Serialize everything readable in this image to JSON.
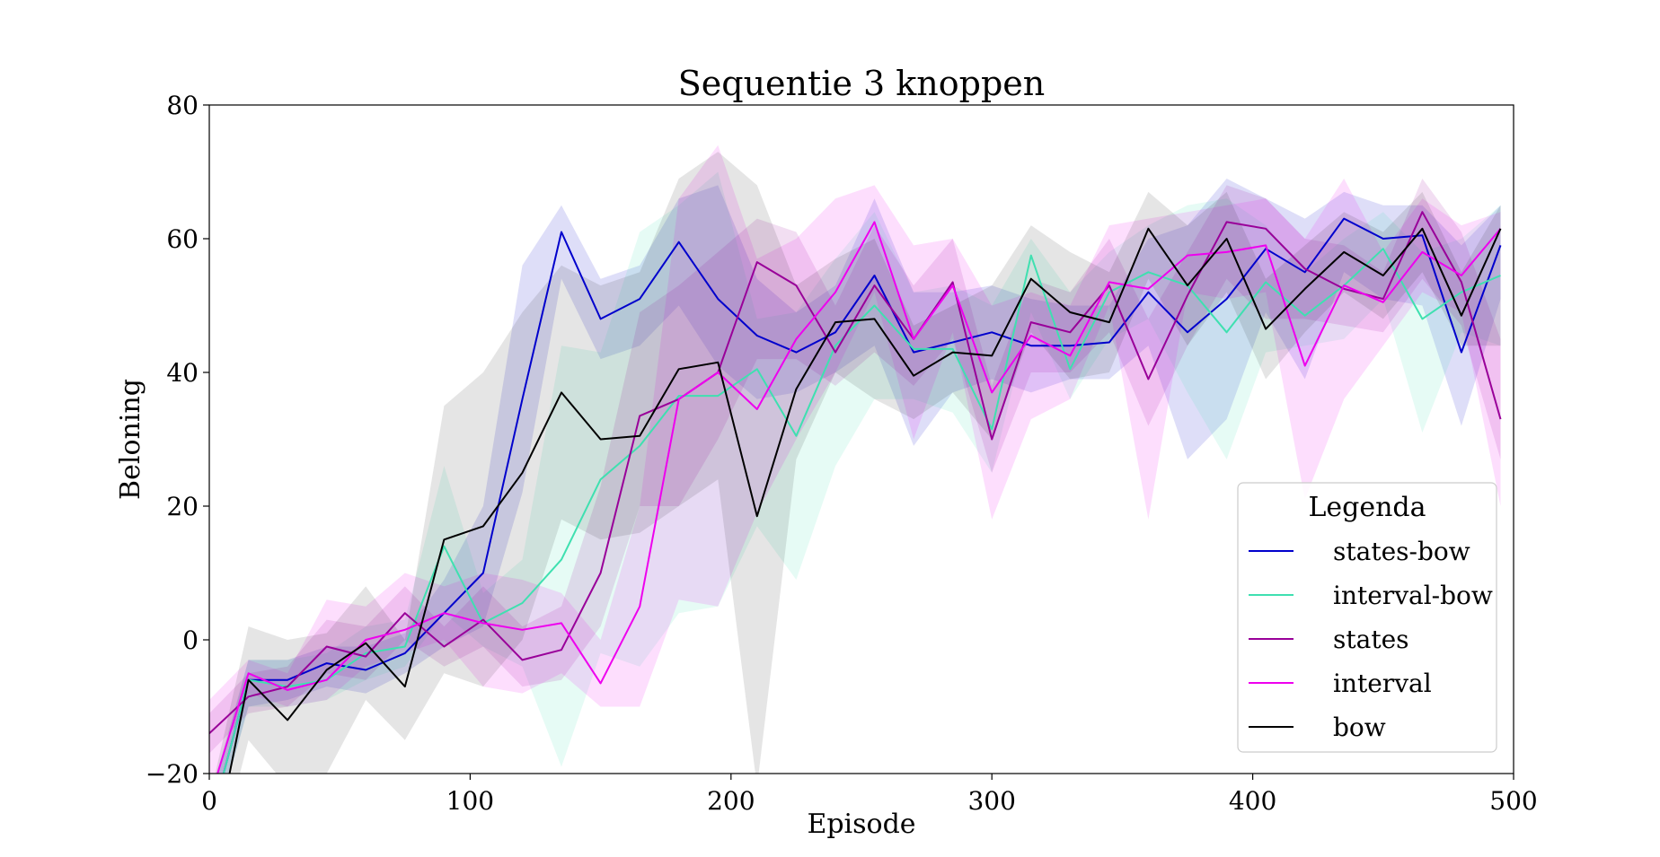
{
  "chart_data": {
    "type": "line",
    "title": "Sequentie 3 knoppen",
    "xlabel": "Episode",
    "ylabel": "Beloning",
    "xlim": [
      0,
      500
    ],
    "ylim": [
      -20,
      80
    ],
    "xticks": [
      0,
      100,
      200,
      300,
      400,
      500
    ],
    "yticks": [
      -20,
      0,
      20,
      40,
      60,
      80
    ],
    "ytick_labels": [
      "−20",
      "0",
      "20",
      "40",
      "60",
      "80"
    ],
    "grid": false,
    "legend": {
      "title": "Legenda",
      "placement": "lower-right"
    },
    "x": [
      0,
      15,
      30,
      45,
      60,
      75,
      90,
      105,
      120,
      135,
      150,
      165,
      180,
      195,
      210,
      225,
      240,
      255,
      270,
      285,
      300,
      315,
      330,
      345,
      360,
      375,
      390,
      405,
      420,
      435,
      450,
      465,
      480,
      495
    ],
    "series": [
      {
        "name": "states-bow",
        "color": "#0000cc",
        "values": [
          -28,
          -6,
          -6,
          -3.5,
          -4.5,
          -2,
          4,
          10,
          36,
          61,
          48,
          51,
          59.5,
          51,
          45.5,
          43,
          46,
          54.5,
          43,
          44.5,
          46,
          44,
          44,
          44.5,
          52,
          46,
          51,
          58.5,
          55,
          63,
          60,
          60.5,
          43,
          59
        ],
        "lower": [
          -31,
          -10,
          -9,
          -7,
          -8,
          -5,
          -1,
          2,
          22,
          54,
          42,
          44,
          50,
          41,
          36,
          37,
          40,
          44,
          29,
          37,
          39,
          37,
          39,
          39,
          44,
          27,
          33,
          49,
          39,
          55,
          51,
          50,
          32,
          51
        ],
        "upper": [
          -24,
          -3,
          -3,
          -1,
          -1,
          1,
          9,
          20,
          56,
          65,
          54,
          56,
          66,
          68,
          54,
          49,
          53,
          66,
          52,
          52,
          53,
          51,
          50,
          50,
          60,
          62,
          69,
          66,
          63,
          67,
          65,
          65,
          59,
          65
        ]
      },
      {
        "name": "interval-bow",
        "color": "#3fe0b0",
        "values": [
          -28,
          -6,
          -7,
          -6,
          -2,
          -1,
          14,
          2.5,
          5.5,
          12,
          24,
          29,
          36.5,
          36.5,
          40.5,
          30.5,
          44,
          50,
          43.5,
          43.5,
          31.5,
          57.5,
          40.5,
          52,
          55,
          53,
          46,
          53.5,
          48.5,
          53,
          58.5,
          48,
          52,
          54.5
        ],
        "lower": [
          -31,
          -10,
          -10,
          -9,
          -6,
          -4,
          4,
          -1,
          -4,
          -19,
          -2,
          -4,
          4,
          5,
          17,
          9,
          26,
          36,
          36,
          34,
          25,
          49,
          36,
          45,
          48,
          37,
          27,
          43,
          44,
          45,
          51,
          31,
          46,
          44
        ],
        "upper": [
          -25,
          -3,
          -3,
          -2,
          2,
          3,
          26,
          7,
          12,
          44,
          43,
          61,
          65,
          70,
          48,
          49,
          57,
          64,
          52,
          53,
          50,
          60,
          52,
          58,
          62,
          65,
          66,
          62,
          55,
          60,
          64,
          58,
          60,
          65
        ]
      },
      {
        "name": "states",
        "color": "#990099",
        "values": [
          -14,
          -8.5,
          -7,
          -1,
          -2.5,
          4,
          -1,
          3,
          -3,
          -1.5,
          10,
          33.5,
          36,
          40,
          56.5,
          53,
          43,
          53,
          45,
          53.5,
          30,
          47.5,
          46,
          53,
          39,
          51.5,
          62.5,
          61.5,
          55.5,
          52.5,
          51,
          64,
          53.5,
          33
        ],
        "lower": [
          -17,
          -11,
          -10,
          -5,
          -6,
          0,
          -4,
          -1,
          -7,
          -6,
          2,
          20,
          20,
          30,
          42,
          42,
          38,
          43,
          38,
          45,
          25,
          40,
          40,
          46,
          32,
          44,
          54,
          48,
          48,
          47,
          46,
          54,
          47,
          27
        ],
        "upper": [
          -11,
          -5,
          -4,
          3,
          2,
          8,
          2,
          8,
          2,
          5,
          23,
          49,
          53,
          58,
          63,
          61,
          50,
          62,
          53,
          60,
          38,
          54,
          52,
          60,
          48,
          58,
          68,
          66,
          60,
          59,
          55,
          69,
          61,
          45
        ]
      },
      {
        "name": "interval",
        "color": "#ee00ee",
        "values": [
          -24,
          -5,
          -7.5,
          -6,
          0,
          1.5,
          4,
          2.5,
          1.5,
          2.5,
          -6.5,
          5,
          36,
          40,
          34.5,
          45,
          52,
          62.5,
          45,
          53,
          37,
          45.5,
          42.5,
          53.5,
          52.5,
          57.5,
          58,
          59,
          41,
          53,
          50.5,
          58,
          54.5,
          61.5
        ],
        "lower": [
          -27,
          -8,
          -10,
          -9,
          -4,
          -2,
          0,
          -7,
          -8,
          -5,
          -10,
          -10,
          6,
          5,
          19,
          30,
          40,
          52,
          30,
          46,
          18,
          33,
          36,
          50,
          18,
          52,
          51,
          52,
          21,
          36,
          44,
          52,
          49,
          20
        ],
        "upper": [
          -9,
          -3,
          -5,
          6,
          5,
          10,
          8,
          10,
          9,
          7,
          0,
          20,
          66,
          74,
          57,
          60,
          66,
          68,
          59,
          60,
          50,
          52,
          50,
          62,
          63,
          64,
          65,
          66,
          60,
          69,
          58,
          66,
          62,
          64
        ]
      },
      {
        "name": "bow",
        "color": "#000000",
        "values": [
          -35,
          -6,
          -12,
          -4.5,
          -0.5,
          -7,
          15,
          17,
          25,
          37,
          30,
          30.5,
          40.5,
          41.5,
          18.5,
          37.5,
          47.5,
          48,
          39.5,
          43,
          42.5,
          54,
          49,
          47.5,
          61.5,
          53,
          60,
          46.5,
          52.5,
          58,
          54.5,
          61.5,
          48.5,
          61.5
        ],
        "lower": [
          -38,
          -15,
          -22,
          -20,
          -9,
          -15,
          -5,
          -7,
          0,
          18,
          15,
          16,
          20,
          24,
          -22,
          27,
          40,
          36,
          33,
          37,
          30,
          46,
          39,
          40,
          54,
          44,
          52,
          39,
          46,
          52,
          48,
          55,
          44,
          44
        ],
        "upper": [
          -24,
          2,
          0,
          1,
          8,
          0,
          35,
          40,
          49,
          56,
          53,
          55,
          69,
          73,
          68,
          53,
          57,
          60,
          47,
          50,
          53,
          62,
          58,
          55,
          67,
          62,
          67,
          54,
          59,
          64,
          61,
          67,
          55,
          65
        ]
      }
    ]
  }
}
